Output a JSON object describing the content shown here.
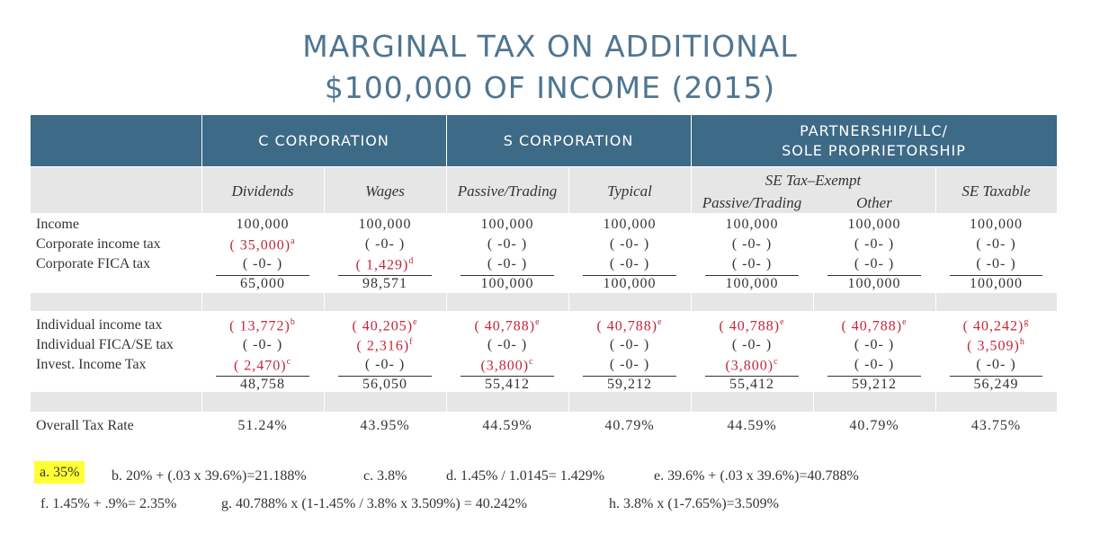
{
  "title": {
    "line1": "MARGINAL TAX ON ADDITIONAL",
    "line2": "$100,000 OF INCOME (2015)"
  },
  "groups": [
    "C CORPORATION",
    "S CORPORATION",
    "PARTNERSHIP/LLC/",
    "SOLE PROPRIETORSHIP"
  ],
  "columns": [
    "Dividends",
    "Wages",
    "Passive/Trading",
    "Typical",
    "SE Tax–Exempt",
    "Passive/Trading",
    "Other",
    "SE Taxable"
  ],
  "rows": {
    "income": "Income",
    "corp_income_tax": "Corporate income tax",
    "corp_fica": "Corporate FICA tax",
    "indiv_income_tax": "Individual income tax",
    "indiv_fica": "Individual FICA/SE tax",
    "invest_tax": "Invest. Income Tax",
    "overall": "Overall Tax Rate"
  },
  "values": {
    "c0": {
      "income": "100,000",
      "cit": "( 35,000)",
      "cit_sup": "a",
      "fica": "( -0- )",
      "sub1": "65,000",
      "iit": "( 13,772)",
      "iit_sup": "b",
      "ifica": "( -0- )",
      "inv": "( 2,470)",
      "inv_sup": "c",
      "sub2": "48,758",
      "rate": "51.24%"
    },
    "c1": {
      "income": "100,000",
      "cit": "( -0- )",
      "fica": "( 1,429)",
      "fica_sup": "d",
      "sub1": "98,571",
      "iit": "( 40,205)",
      "iit_sup": "e",
      "ifica": "( 2,316)",
      "ifica_sup": "f",
      "inv": "( -0- )",
      "sub2": "56,050",
      "rate": "43.95%"
    },
    "c2": {
      "income": "100,000",
      "cit": "( -0- )",
      "fica": "( -0- )",
      "sub1": "100,000",
      "iit": "( 40,788)",
      "iit_sup": "e",
      "ifica": "( -0- )",
      "inv": "(3,800)",
      "inv_sup": "c",
      "sub2": "55,412",
      "rate": "44.59%"
    },
    "c3": {
      "income": "100,000",
      "cit": "( -0- )",
      "fica": "( -0- )",
      "sub1": "100,000",
      "iit": "( 40,788)",
      "iit_sup": "e",
      "ifica": "( -0- )",
      "inv": "( -0- )",
      "sub2": "59,212",
      "rate": "40.79%"
    },
    "c4": {
      "income": "100,000",
      "cit": "( -0- )",
      "fica": "( -0- )",
      "sub1": "100,000",
      "iit": "( 40,788)",
      "iit_sup": "e",
      "ifica": "( -0- )",
      "inv": "(3,800)",
      "inv_sup": "c",
      "sub2": "55,412",
      "rate": "44.59%"
    },
    "c5": {
      "income": "100,000",
      "cit": "( -0- )",
      "fica": "( -0- )",
      "sub1": "100,000",
      "iit": "( 40,788)",
      "iit_sup": "e",
      "ifica": "( -0- )",
      "inv": "( -0- )",
      "sub2": "59,212",
      "rate": "40.79%"
    },
    "c6": {
      "income": "100,000",
      "cit": "( -0- )",
      "fica": "( -0- )",
      "sub1": "100,000",
      "iit": "( 40,242)",
      "iit_sup": "g",
      "ifica": "( 3,509)",
      "ifica_sup": "h",
      "inv": "( -0- )",
      "sub2": "56,249",
      "rate": "43.75%"
    }
  },
  "footnotes": {
    "a": "a.  35%",
    "b": "b.  20% + (.03 x 39.6%)=21.188%",
    "c": "c.  3.8%",
    "d": "d.  1.45% / 1.0145= 1.429%",
    "e": "e.  39.6% + (.03 x 39.6%)=40.788%",
    "f": "f.  1.45% + .9%= 2.35%",
    "g": "g.  40.788% x (1-1.45% / 3.8% x 3.509%) = 40.242%",
    "h": "h.  3.8% x (1-7.65%)=3.509%"
  },
  "colors": {
    "header": "#3d6a86",
    "title": "#4f7591",
    "negative": "#c0283a",
    "highlight": "#ffff33"
  }
}
